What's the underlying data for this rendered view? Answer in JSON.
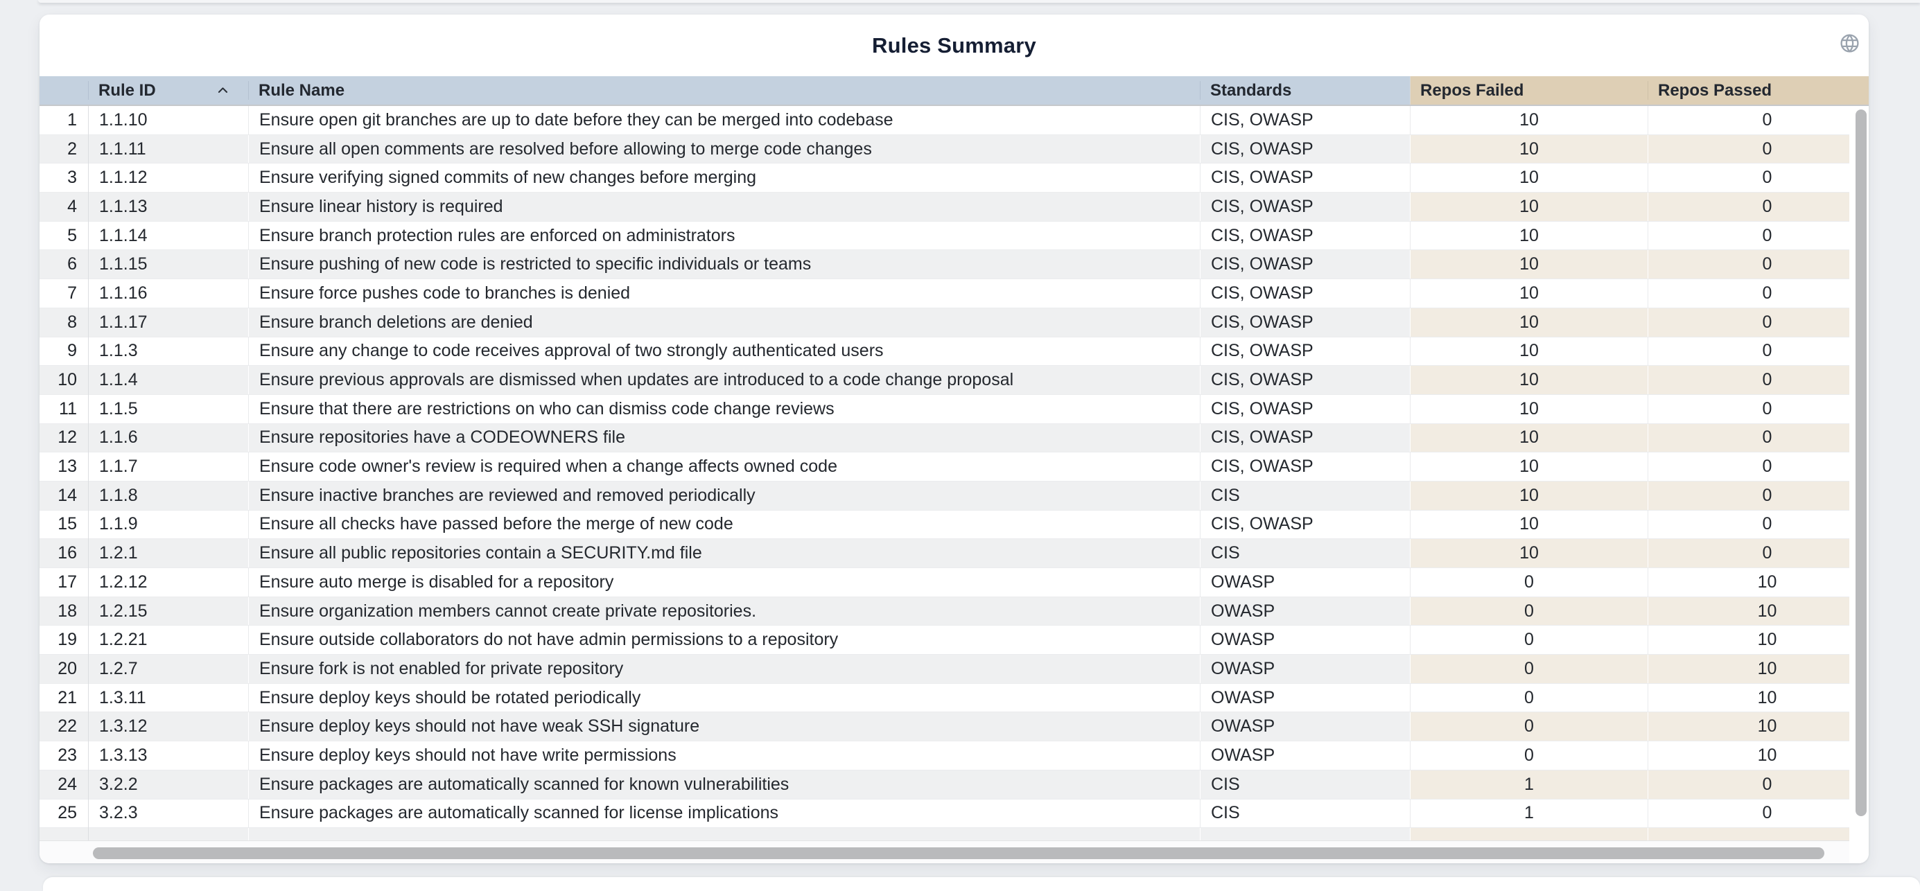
{
  "title": "Rules Summary",
  "theme": {
    "header_blue": "#c4d1df",
    "header_tan": "#decfb5",
    "header_border": "#c6c8cb",
    "stripe_gray": "#eff0f1",
    "stripe_beige": "#f2ece2",
    "scrollbar": "#b9babc",
    "icon_gray": "#9aa3ae"
  },
  "table": {
    "columns": [
      {
        "key": "num",
        "label": ""
      },
      {
        "key": "rule_id",
        "label": "Rule ID",
        "sorted": "ascending"
      },
      {
        "key": "rule_name",
        "label": "Rule Name"
      },
      {
        "key": "standards",
        "label": "Standards"
      },
      {
        "key": "repos_failed",
        "label": "Repos Failed"
      },
      {
        "key": "repos_passed",
        "label": "Repos Passed"
      }
    ],
    "rows": [
      {
        "num": 1,
        "rule_id": "1.1.10",
        "rule_name": "Ensure open git branches are up to date before they can be merged into codebase",
        "standards": "CIS, OWASP",
        "repos_failed": 10,
        "repos_passed": 0
      },
      {
        "num": 2,
        "rule_id": "1.1.11",
        "rule_name": "Ensure all open comments are resolved before allowing to merge code changes",
        "standards": "CIS, OWASP",
        "repos_failed": 10,
        "repos_passed": 0
      },
      {
        "num": 3,
        "rule_id": "1.1.12",
        "rule_name": "Ensure verifying signed commits of new changes before merging",
        "standards": "CIS, OWASP",
        "repos_failed": 10,
        "repos_passed": 0
      },
      {
        "num": 4,
        "rule_id": "1.1.13",
        "rule_name": "Ensure linear history is required",
        "standards": "CIS, OWASP",
        "repos_failed": 10,
        "repos_passed": 0
      },
      {
        "num": 5,
        "rule_id": "1.1.14",
        "rule_name": "Ensure branch protection rules are enforced on administrators",
        "standards": "CIS, OWASP",
        "repos_failed": 10,
        "repos_passed": 0
      },
      {
        "num": 6,
        "rule_id": "1.1.15",
        "rule_name": "Ensure pushing of new code is restricted to specific individuals or teams",
        "standards": "CIS, OWASP",
        "repos_failed": 10,
        "repos_passed": 0
      },
      {
        "num": 7,
        "rule_id": "1.1.16",
        "rule_name": "Ensure force pushes code to branches is denied",
        "standards": "CIS, OWASP",
        "repos_failed": 10,
        "repos_passed": 0
      },
      {
        "num": 8,
        "rule_id": "1.1.17",
        "rule_name": "Ensure branch deletions are denied",
        "standards": "CIS, OWASP",
        "repos_failed": 10,
        "repos_passed": 0
      },
      {
        "num": 9,
        "rule_id": "1.1.3",
        "rule_name": "Ensure any change to code receives approval of two strongly authenticated users",
        "standards": "CIS, OWASP",
        "repos_failed": 10,
        "repos_passed": 0
      },
      {
        "num": 10,
        "rule_id": "1.1.4",
        "rule_name": "Ensure previous approvals are dismissed when updates are introduced to a code change proposal",
        "standards": "CIS, OWASP",
        "repos_failed": 10,
        "repos_passed": 0
      },
      {
        "num": 11,
        "rule_id": "1.1.5",
        "rule_name": "Ensure that there are restrictions on who can dismiss code change reviews",
        "standards": "CIS, OWASP",
        "repos_failed": 10,
        "repos_passed": 0
      },
      {
        "num": 12,
        "rule_id": "1.1.6",
        "rule_name": "Ensure repositories have a CODEOWNERS file",
        "standards": "CIS, OWASP",
        "repos_failed": 10,
        "repos_passed": 0
      },
      {
        "num": 13,
        "rule_id": "1.1.7",
        "rule_name": "Ensure code owner's review is required when a change affects owned code",
        "standards": "CIS, OWASP",
        "repos_failed": 10,
        "repos_passed": 0
      },
      {
        "num": 14,
        "rule_id": "1.1.8",
        "rule_name": "Ensure inactive branches are reviewed and removed periodically",
        "standards": "CIS",
        "repos_failed": 10,
        "repos_passed": 0
      },
      {
        "num": 15,
        "rule_id": "1.1.9",
        "rule_name": "Ensure all checks have passed before the merge of new code",
        "standards": "CIS, OWASP",
        "repos_failed": 10,
        "repos_passed": 0
      },
      {
        "num": 16,
        "rule_id": "1.2.1",
        "rule_name": "Ensure all public repositories contain a SECURITY.md file",
        "standards": "CIS",
        "repos_failed": 10,
        "repos_passed": 0
      },
      {
        "num": 17,
        "rule_id": "1.2.12",
        "rule_name": "Ensure auto merge is disabled for a repository",
        "standards": "OWASP",
        "repos_failed": 0,
        "repos_passed": 10
      },
      {
        "num": 18,
        "rule_id": "1.2.15",
        "rule_name": "Ensure organization members cannot create private repositories.",
        "standards": "OWASP",
        "repos_failed": 0,
        "repos_passed": 10
      },
      {
        "num": 19,
        "rule_id": "1.2.21",
        "rule_name": "Ensure outside collaborators do not have admin permissions to a repository",
        "standards": "OWASP",
        "repos_failed": 0,
        "repos_passed": 10
      },
      {
        "num": 20,
        "rule_id": "1.2.7",
        "rule_name": "Ensure fork is not enabled for private repository",
        "standards": "OWASP",
        "repos_failed": 0,
        "repos_passed": 10
      },
      {
        "num": 21,
        "rule_id": "1.3.11",
        "rule_name": "Ensure deploy keys should be rotated periodically",
        "standards": "OWASP",
        "repos_failed": 0,
        "repos_passed": 10
      },
      {
        "num": 22,
        "rule_id": "1.3.12",
        "rule_name": "Ensure deploy keys should not have weak SSH signature",
        "standards": "OWASP",
        "repos_failed": 0,
        "repos_passed": 10
      },
      {
        "num": 23,
        "rule_id": "1.3.13",
        "rule_name": "Ensure deploy keys should not have write permissions",
        "standards": "OWASP",
        "repos_failed": 0,
        "repos_passed": 10
      },
      {
        "num": 24,
        "rule_id": "3.2.2",
        "rule_name": "Ensure packages are automatically scanned for known vulnerabilities",
        "standards": "CIS",
        "repos_failed": 1,
        "repos_passed": 0
      },
      {
        "num": 25,
        "rule_id": "3.2.3",
        "rule_name": "Ensure packages are automatically scanned for license implications",
        "standards": "CIS",
        "repos_failed": 1,
        "repos_passed": 0
      }
    ]
  }
}
